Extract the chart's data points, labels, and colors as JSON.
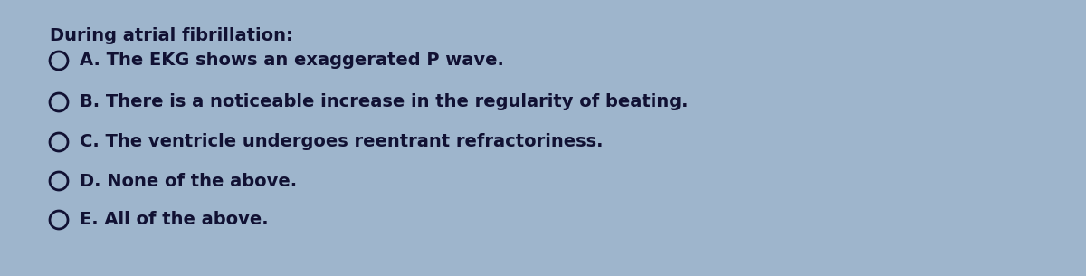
{
  "background_color": "#9eb5cc",
  "title_text": "During atrial fibrillation:",
  "title_fontsize": 14,
  "title_fontweight": "bold",
  "title_fontstyle": "normal",
  "options": [
    {
      "label": "A. The EKG shows an exaggerated P wave."
    },
    {
      "label": "B. There is a noticeable increase in the regularity of beating."
    },
    {
      "label": "C. The ventricle undergoes reentrant refractoriness."
    },
    {
      "label": "D. None of the above."
    },
    {
      "label": "E. All of the above."
    }
  ],
  "circle_color": "#111133",
  "circle_linewidth": 2.0,
  "text_color": "#111133",
  "text_fontsize": 14,
  "text_fontweight": "bold",
  "text_fontstyle": "normal"
}
